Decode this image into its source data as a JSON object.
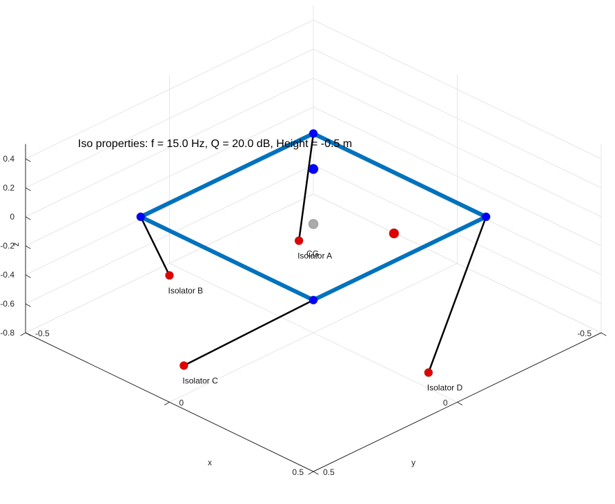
{
  "chart_data": {
    "type": "scatter3d",
    "title": "Iso properties: f = 15.0 Hz, Q = 20.0 dB, Height = -0.5 m",
    "xlabel": "x",
    "ylabel": "y",
    "zlabel": "z",
    "xlim": [
      -0.5,
      0.5
    ],
    "ylim": [
      -0.5,
      0.5
    ],
    "zlim": [
      -0.8,
      0.5
    ],
    "xticks": [
      "-0.5",
      "0",
      "0.5"
    ],
    "yticks": [
      "-0.5",
      "0",
      "0.5"
    ],
    "zticks": [
      "-0.8",
      "-0.6",
      "-0.4",
      "-0.2",
      "0",
      "0.2",
      "0.4"
    ],
    "grid": true,
    "frame_color": "#0072BD",
    "leg_color": "#000000",
    "isolator_color": "#E00000",
    "node_color": "#0000FF",
    "cg_color": "#AAAAAA",
    "frame_corners": [
      {
        "x": -0.3,
        "y": -0.3,
        "z": 0.0
      },
      {
        "x": -0.3,
        "y": 0.3,
        "z": 0.0
      },
      {
        "x": 0.3,
        "y": 0.3,
        "z": 0.0
      },
      {
        "x": 0.3,
        "y": -0.3,
        "z": 0.0
      }
    ],
    "isolators": [
      {
        "label": "Isolator A",
        "x": -0.15,
        "y": -0.2,
        "z": -0.5
      },
      {
        "label": "Isolator B",
        "x": 0.2,
        "y": -0.3,
        "z": -0.5
      },
      {
        "label": "Isolator C",
        "x": 0.5,
        "y": 0.05,
        "z": -0.5
      },
      {
        "label": "Isolator D",
        "x": 0.1,
        "y": 0.5,
        "z": -0.5
      }
    ],
    "legs": [
      {
        "from": 0,
        "to": 0
      },
      {
        "from": 3,
        "to": 1
      },
      {
        "from": 2,
        "to": 2
      },
      {
        "from": 1,
        "to": 3
      }
    ],
    "cg": {
      "label": "CG",
      "x": 0.0,
      "y": 0.0,
      "z": -0.05
    },
    "extra_points": [
      {
        "x": -0.12,
        "y": -0.12,
        "z": 0.1,
        "kind": "node"
      },
      {
        "x": -0.08,
        "y": 0.2,
        "z": 0.0,
        "kind": "isolator"
      }
    ]
  }
}
